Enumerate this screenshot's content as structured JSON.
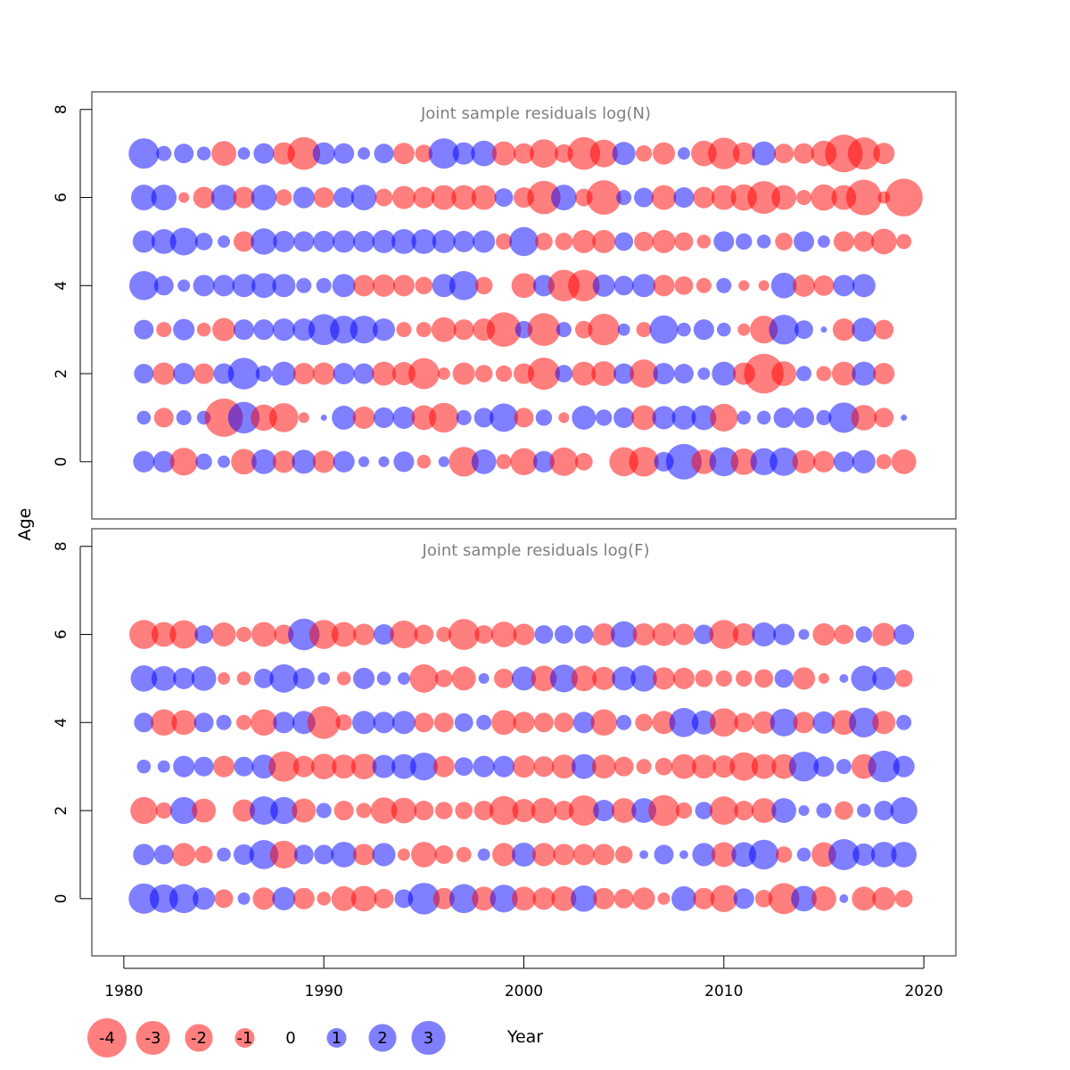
{
  "colors": {
    "negative": "#ff0000",
    "positive": "#0000ff",
    "bubble_opacity": 0.5,
    "frame": "#444444",
    "title": "#808080"
  },
  "chart_data": {
    "type": "scatter",
    "subtype": "bubble-residuals",
    "ylabel": "Age",
    "xlabel": "Year",
    "x_ticks": [
      1980,
      1990,
      2000,
      2010,
      2020
    ],
    "xlim": [
      1978.4,
      2021.6
    ],
    "years": [
      1981,
      1982,
      1983,
      1984,
      1985,
      1986,
      1987,
      1988,
      1989,
      1990,
      1991,
      1992,
      1993,
      1994,
      1995,
      1996,
      1997,
      1998,
      1999,
      2000,
      2001,
      2002,
      2003,
      2004,
      2005,
      2006,
      2007,
      2008,
      2009,
      2010,
      2011,
      2012,
      2013,
      2014,
      2015,
      2016,
      2017,
      2018,
      2019
    ],
    "legend": {
      "title": "Year",
      "values": [
        -4,
        -3,
        -2,
        -1,
        0,
        1,
        2,
        3
      ],
      "labels": [
        "-4",
        "-3",
        "-2",
        "-1",
        "0",
        "1",
        "2",
        "3"
      ]
    },
    "panels": [
      {
        "title": "Joint sample residuals log(N)",
        "ylim": [
          -1.3,
          8.4
        ],
        "y_ticks": [
          0,
          2,
          4,
          6,
          8
        ],
        "ages": [
          0,
          1,
          2,
          3,
          4,
          5,
          6,
          7
        ],
        "residuals": {
          "7": [
            2.4,
            0.6,
            1.0,
            0.5,
            -1.6,
            0.4,
            1.1,
            -1.3,
            -2.8,
            1.3,
            1.1,
            0.4,
            1.0,
            -1.2,
            -0.8,
            2.4,
            1.3,
            1.7,
            -1.5,
            -1.1,
            -2.1,
            -0.9,
            -2.8,
            -2.0,
            1.4,
            -0.7,
            -1.3,
            0.4,
            -1.7,
            -2.6,
            -1.3,
            1.5,
            -1.0,
            -1.1,
            -1.7,
            -3.7,
            -2.7,
            -1.2,
            0
          ],
          "6": [
            1.7,
            1.7,
            -0.3,
            -1.2,
            1.7,
            -1.2,
            1.7,
            -0.7,
            1.2,
            -1.1,
            1.1,
            1.7,
            -0.8,
            -1.4,
            -1.2,
            -1.6,
            -1.6,
            -1.6,
            0.9,
            -1.1,
            -2.9,
            1.7,
            -0.8,
            -3.1,
            0.6,
            1.0,
            -1.6,
            1.1,
            -1.2,
            -1.6,
            -1.8,
            -2.8,
            -1.6,
            -0.6,
            -1.8,
            -1.6,
            -3.3,
            -0.4,
            -3.7
          ],
          "5": [
            1.3,
            1.6,
            2.0,
            0.8,
            0.4,
            -1.1,
            1.8,
            1.2,
            1.1,
            1.2,
            1.3,
            1.2,
            1.4,
            1.6,
            1.6,
            1.4,
            1.2,
            1.3,
            -0.7,
            2.2,
            -0.8,
            -0.8,
            -1.4,
            -1.4,
            0.9,
            -1.0,
            -1.4,
            -0.9,
            -0.5,
            1.1,
            0.7,
            0.5,
            -0.8,
            1.1,
            0.4,
            -1.1,
            -1.1,
            -1.7,
            -0.6
          ],
          "4": [
            2.2,
            1.0,
            0.4,
            1.2,
            1.2,
            1.4,
            1.6,
            1.4,
            0.6,
            0.6,
            1.4,
            -1.2,
            -1.3,
            -1.2,
            -0.8,
            1.4,
            2.2,
            -0.8,
            0,
            -1.6,
            1.2,
            -2.6,
            -2.6,
            1.3,
            1.0,
            1.4,
            -1.2,
            -0.9,
            -0.6,
            0.6,
            -0.3,
            -0.3,
            1.7,
            -1.3,
            -1.1,
            1.2,
            1.4,
            0,
            0
          ],
          "3": [
            1.0,
            -0.6,
            1.2,
            -0.5,
            -1.4,
            1.1,
            1.1,
            1.3,
            1.3,
            2.5,
            2.0,
            2.0,
            1.3,
            -0.6,
            -0.6,
            -1.6,
            -1.1,
            -1.3,
            -3.1,
            0.8,
            -2.8,
            0.6,
            -0.8,
            -2.6,
            0.4,
            -0.6,
            2.1,
            0.5,
            1.1,
            0.5,
            -0.4,
            -2.0,
            2.3,
            0.9,
            0.1,
            -1.3,
            1.5,
            -1.0,
            0
          ],
          "2": [
            1.0,
            -1.3,
            1.2,
            -1.1,
            1.1,
            2.6,
            0.7,
            1.5,
            -1.2,
            -1.3,
            1.2,
            1.1,
            -1.5,
            -1.4,
            -2.5,
            -0.4,
            -1.3,
            -0.8,
            -0.7,
            -1.1,
            -2.7,
            0.8,
            -1.5,
            -1.6,
            1.1,
            -2.1,
            1.2,
            1.0,
            0.4,
            1.5,
            -1.3,
            -4.1,
            -1.6,
            0.6,
            -0.6,
            -1.5,
            1.5,
            -1.2,
            0
          ],
          "1": [
            0.5,
            -1.0,
            0.6,
            0.5,
            -3.8,
            2.6,
            -1.8,
            -2.2,
            -0.3,
            0.1,
            1.5,
            -1.3,
            1.1,
            1.3,
            -1.6,
            -2.3,
            0.6,
            1.0,
            2.1,
            -1.0,
            0.7,
            -0.3,
            1.5,
            0.7,
            1.1,
            -1.6,
            1.4,
            1.5,
            1.6,
            -2.0,
            0.5,
            0.5,
            1.1,
            1.1,
            0.6,
            2.4,
            -1.7,
            -1.0,
            0.1
          ],
          "0": [
            1.2,
            1.2,
            -2.0,
            0.7,
            0.4,
            -1.7,
            1.6,
            -1.3,
            1.5,
            -1.3,
            1.2,
            0.3,
            0.3,
            1.1,
            -0.5,
            0.3,
            -2.3,
            1.6,
            -0.6,
            -1.9,
            1.2,
            -2.1,
            -0.8,
            0,
            -2.2,
            -2.3,
            1.0,
            3.3,
            -1.6,
            2.2,
            -1.8,
            1.9,
            2.1,
            -1.4,
            -1.2,
            1.1,
            1.4,
            -0.6,
            -1.6
          ]
        }
      },
      {
        "title": "Joint sample residuals log(F)",
        "ylim": [
          -1.3,
          8.4
        ],
        "y_ticks": [
          0,
          2,
          4,
          6,
          8
        ],
        "ages": [
          0,
          1,
          2,
          3,
          4,
          5,
          6
        ],
        "residuals": {
          "6": [
            -2.2,
            -1.6,
            -2.1,
            0.9,
            -1.5,
            -0.6,
            -1.6,
            -1.0,
            2.6,
            -2.2,
            -1.6,
            -1.2,
            1.1,
            -2.0,
            -1.0,
            -0.6,
            -2.5,
            -0.9,
            -1.7,
            -1.2,
            0.9,
            0.9,
            0.9,
            -1.3,
            1.8,
            -1.3,
            -1.4,
            -1.2,
            1.0,
            -2.2,
            -1.3,
            1.5,
            1.2,
            0.3,
            -1.3,
            -1.0,
            0.7,
            -1.4,
            1.1
          ],
          "5": [
            1.8,
            1.6,
            1.2,
            1.6,
            -0.4,
            -0.5,
            1.0,
            2.1,
            1.2,
            0.4,
            -0.5,
            1.2,
            0.5,
            0.4,
            -2.1,
            -0.8,
            -1.5,
            0.3,
            -1.0,
            1.5,
            -1.7,
            2.0,
            -1.7,
            -1.4,
            1.5,
            1.8,
            -1.3,
            -1.2,
            -0.8,
            -0.7,
            -0.7,
            -0.9,
            0.9,
            -1.3,
            -0.3,
            0.2,
            1.7,
            1.4,
            -0.8
          ],
          "4": [
            1.0,
            -1.8,
            -1.6,
            1.0,
            0.6,
            -0.6,
            -1.8,
            1.2,
            1.4,
            -2.8,
            -0.7,
            1.4,
            1.2,
            1.4,
            -1.0,
            -1.0,
            0.9,
            0.6,
            -1.6,
            -1.2,
            -1.0,
            -1.0,
            1.2,
            -1.8,
            0.6,
            -0.8,
            -1.4,
            2.2,
            1.5,
            -2.1,
            -1.0,
            -1.3,
            2.0,
            -1.2,
            1.3,
            -1.6,
            2.3,
            -1.4,
            0.6
          ],
          "3": [
            0.5,
            0.4,
            1.2,
            1.0,
            -1.2,
            1.0,
            1.5,
            -2.4,
            -1.2,
            -1.7,
            -1.5,
            -1.7,
            1.4,
            1.6,
            2.0,
            -1.2,
            0.9,
            1.2,
            1.2,
            -1.3,
            -1.1,
            -1.5,
            1.6,
            -1.5,
            -1.0,
            -0.6,
            -0.8,
            -1.6,
            -1.5,
            -1.3,
            -2.1,
            -1.6,
            -1.6,
            2.3,
            1.1,
            0.6,
            -1.6,
            2.6,
            1.2
          ],
          "2": [
            -1.9,
            -0.7,
            1.9,
            -1.5,
            0,
            -1.3,
            2.1,
            1.9,
            -1.5,
            0.6,
            -1.0,
            -0.6,
            -1.8,
            -1.7,
            -1.0,
            -0.8,
            -0.8,
            -1.0,
            -2.2,
            -1.4,
            -1.7,
            -1.0,
            -2.4,
            1.2,
            -1.6,
            1.6,
            -2.5,
            -0.7,
            0.8,
            -2.1,
            -1.0,
            -1.6,
            1.6,
            0.3,
            0.6,
            -0.9,
            0.5,
            1.0,
            1.9
          ],
          "1": [
            1.2,
            1.0,
            -1.4,
            -0.8,
            0.5,
            1.1,
            2.2,
            -2.0,
            1.0,
            1.0,
            1.7,
            -1.2,
            1.4,
            -0.4,
            -1.7,
            -0.9,
            -0.6,
            0.4,
            -1.4,
            1.5,
            -1.4,
            -1.2,
            -1.2,
            -1.2,
            -0.8,
            0.2,
            1.0,
            0.2,
            1.4,
            -1.6,
            1.6,
            2.3,
            -0.7,
            0.5,
            -1.6,
            2.5,
            1.3,
            1.7,
            1.7
          ],
          "0": [
            2.4,
            2.1,
            2.2,
            1.3,
            -0.9,
            0.4,
            -1.3,
            1.4,
            -1.2,
            -0.5,
            -1.6,
            -1.7,
            -1.0,
            0.9,
            2.6,
            -1.2,
            2.2,
            -1.5,
            2.0,
            -1.5,
            -1.3,
            -1.6,
            1.8,
            -1.2,
            -1.0,
            -1.3,
            -0.4,
            1.6,
            -1.2,
            -1.9,
            1.1,
            -0.8,
            -2.5,
            1.7,
            -1.6,
            0.2,
            -1.5,
            -1.4,
            -0.8
          ]
        }
      }
    ]
  }
}
